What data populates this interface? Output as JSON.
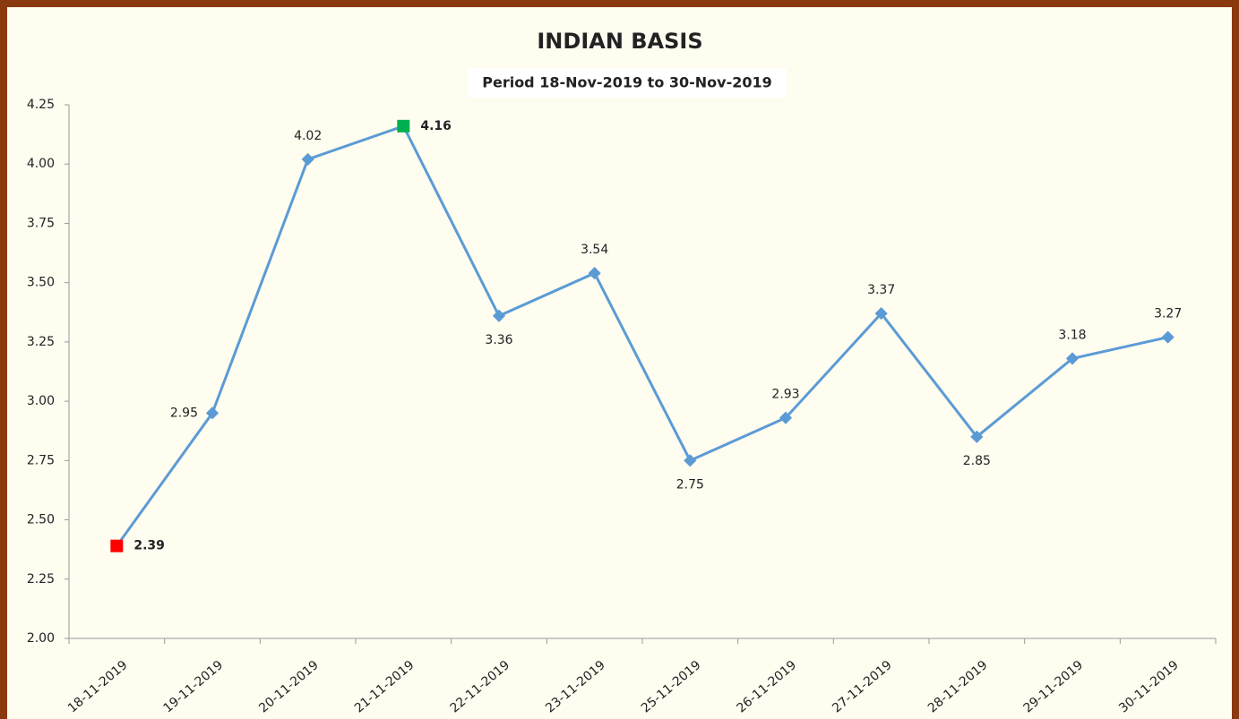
{
  "chart_data": {
    "type": "line",
    "title": "INDIAN BASIS",
    "subtitle": "Period 18-Nov-2019 to 30-Nov-2019",
    "categories": [
      "18-11-2019",
      "19-11-2019",
      "20-11-2019",
      "21-11-2019",
      "22-11-2019",
      "23-11-2019",
      "25-11-2019",
      "26-11-2019",
      "27-11-2019",
      "28-11-2019",
      "29-11-2019",
      "30-11-2019"
    ],
    "series": [
      {
        "name": "Indian Basis",
        "color": "#5b9bd5",
        "values": [
          2.39,
          2.95,
          4.02,
          4.16,
          3.36,
          3.54,
          2.75,
          2.93,
          3.37,
          2.85,
          3.18,
          3.27
        ]
      }
    ],
    "label_positions": [
      "right",
      "left",
      "above",
      "right",
      "below",
      "above",
      "below",
      "above",
      "above",
      "below",
      "above",
      "above"
    ],
    "min_marker_color": "#ff0000",
    "max_marker_color": "#00b050",
    "ylim": [
      2.0,
      4.25
    ],
    "yticks": [
      {
        "value": 2.0,
        "label": "2.00"
      },
      2.25,
      {
        "value": 2.5,
        "label": "2.50"
      },
      2.75,
      {
        "value": 3.0,
        "label": "3.00"
      },
      3.25,
      {
        "value": 3.5,
        "label": "3.50"
      },
      3.75,
      {
        "value": 4.0,
        "label": "4.00"
      },
      4.25
    ],
    "grid": false
  }
}
